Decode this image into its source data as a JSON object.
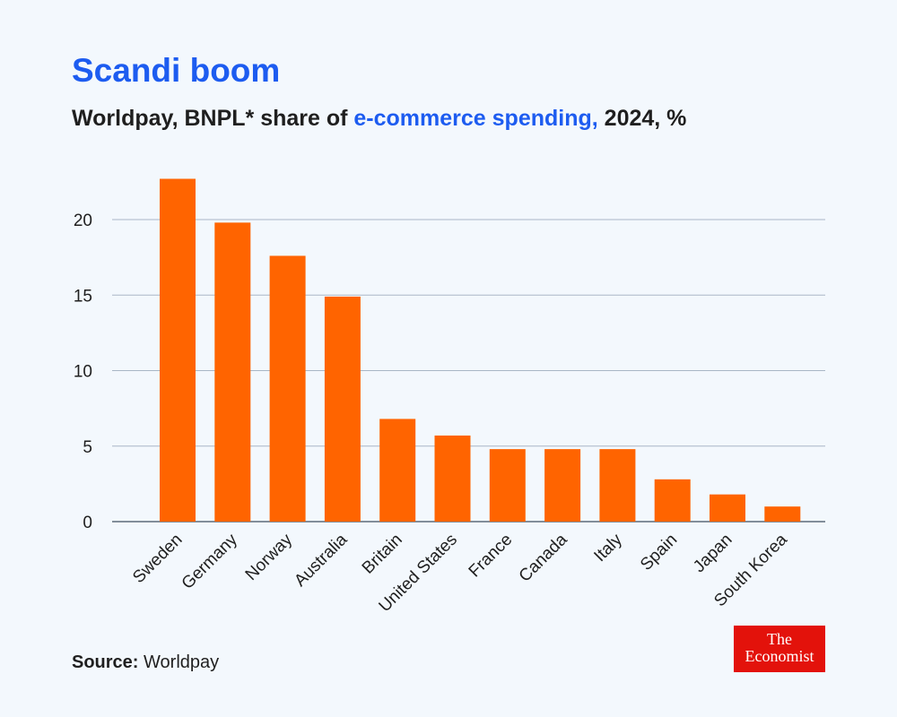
{
  "header": {
    "title": "Scandi boom",
    "subtitle_prefix": "Worldpay, BNPL* share of ",
    "subtitle_highlight": "e-commerce spending,",
    "subtitle_suffix": " 2024, %"
  },
  "footer": {
    "source_label": "Source:",
    "source_value": " Worldpay",
    "logo_line1": "The",
    "logo_line2": "Economist"
  },
  "colors": {
    "bar": "#ff6400",
    "gridline": "#a9b6c6",
    "axis": "#5c6a7a",
    "text": "#1f1f1f",
    "title": "#1d5cf0"
  },
  "chart_data": {
    "type": "bar",
    "categories": [
      "Sweden",
      "Germany",
      "Norway",
      "Australia",
      "Britain",
      "United States",
      "France",
      "Canada",
      "Italy",
      "Spain",
      "Japan",
      "South Korea"
    ],
    "values": [
      22.7,
      19.8,
      17.6,
      14.9,
      6.8,
      5.7,
      4.8,
      4.8,
      4.8,
      2.8,
      1.8,
      1.0
    ],
    "title": "",
    "xlabel": "",
    "ylabel": "",
    "ylim": [
      0,
      23
    ],
    "yticks": [
      0,
      5,
      10,
      15,
      20
    ],
    "grid": true,
    "legend": "none"
  }
}
